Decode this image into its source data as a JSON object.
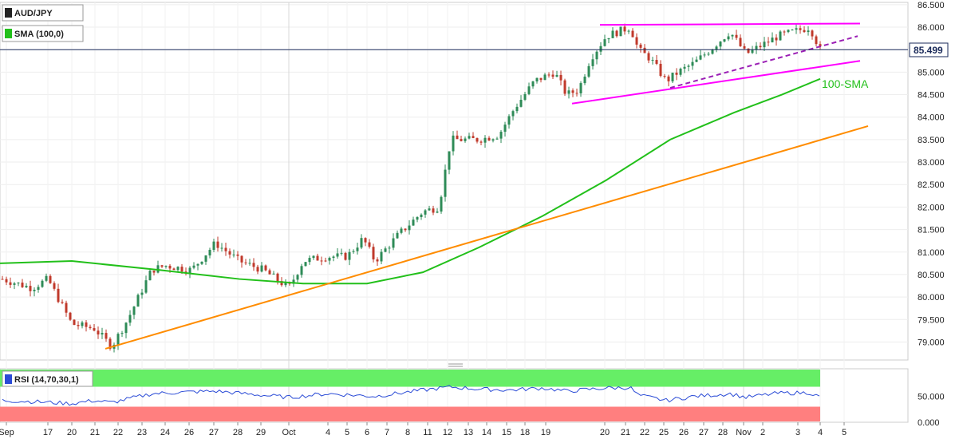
{
  "chart_data": {
    "type": "candlestick",
    "symbol": "AUD/JPY",
    "indicator_label": "SMA (100,0)",
    "current_price": "85.499",
    "x_ticks": [
      "Sep",
      "17",
      "20",
      "21",
      "22",
      "23",
      "24",
      "26",
      "27",
      "28",
      "29",
      "Oct",
      "4",
      "5",
      "6",
      "7",
      "8",
      "11",
      "12",
      "13",
      "14",
      "15",
      "18",
      "19",
      "20",
      "21",
      "22",
      "25",
      "26",
      "27",
      "28",
      "Nov",
      "2",
      "3",
      "4",
      "5"
    ],
    "y_ticks": [
      "86.500",
      "86.000",
      "85.500",
      "85.000",
      "84.500",
      "84.000",
      "83.500",
      "83.000",
      "82.500",
      "82.000",
      "81.500",
      "81.000",
      "80.500",
      "80.000",
      "79.500",
      "79.000"
    ],
    "ylim": [
      78.6,
      86.55
    ],
    "annotations": {
      "sma_label": "100-SMA"
    },
    "colors": {
      "up": "#2e8b57",
      "down": "#c0392b",
      "sma": "#22c01a",
      "support": "#ff8c00",
      "pattern": "#ff00ff",
      "rsi": "#2a4bd6",
      "overbought": "#66ee66",
      "oversold": "#ff7f7f",
      "price_line": "#1a2a5a"
    },
    "rsi": {
      "label": "RSI (14,70,30,1)",
      "y_ticks": [
        "50.000",
        "0.000"
      ],
      "ylim": [
        0,
        100
      ]
    }
  }
}
